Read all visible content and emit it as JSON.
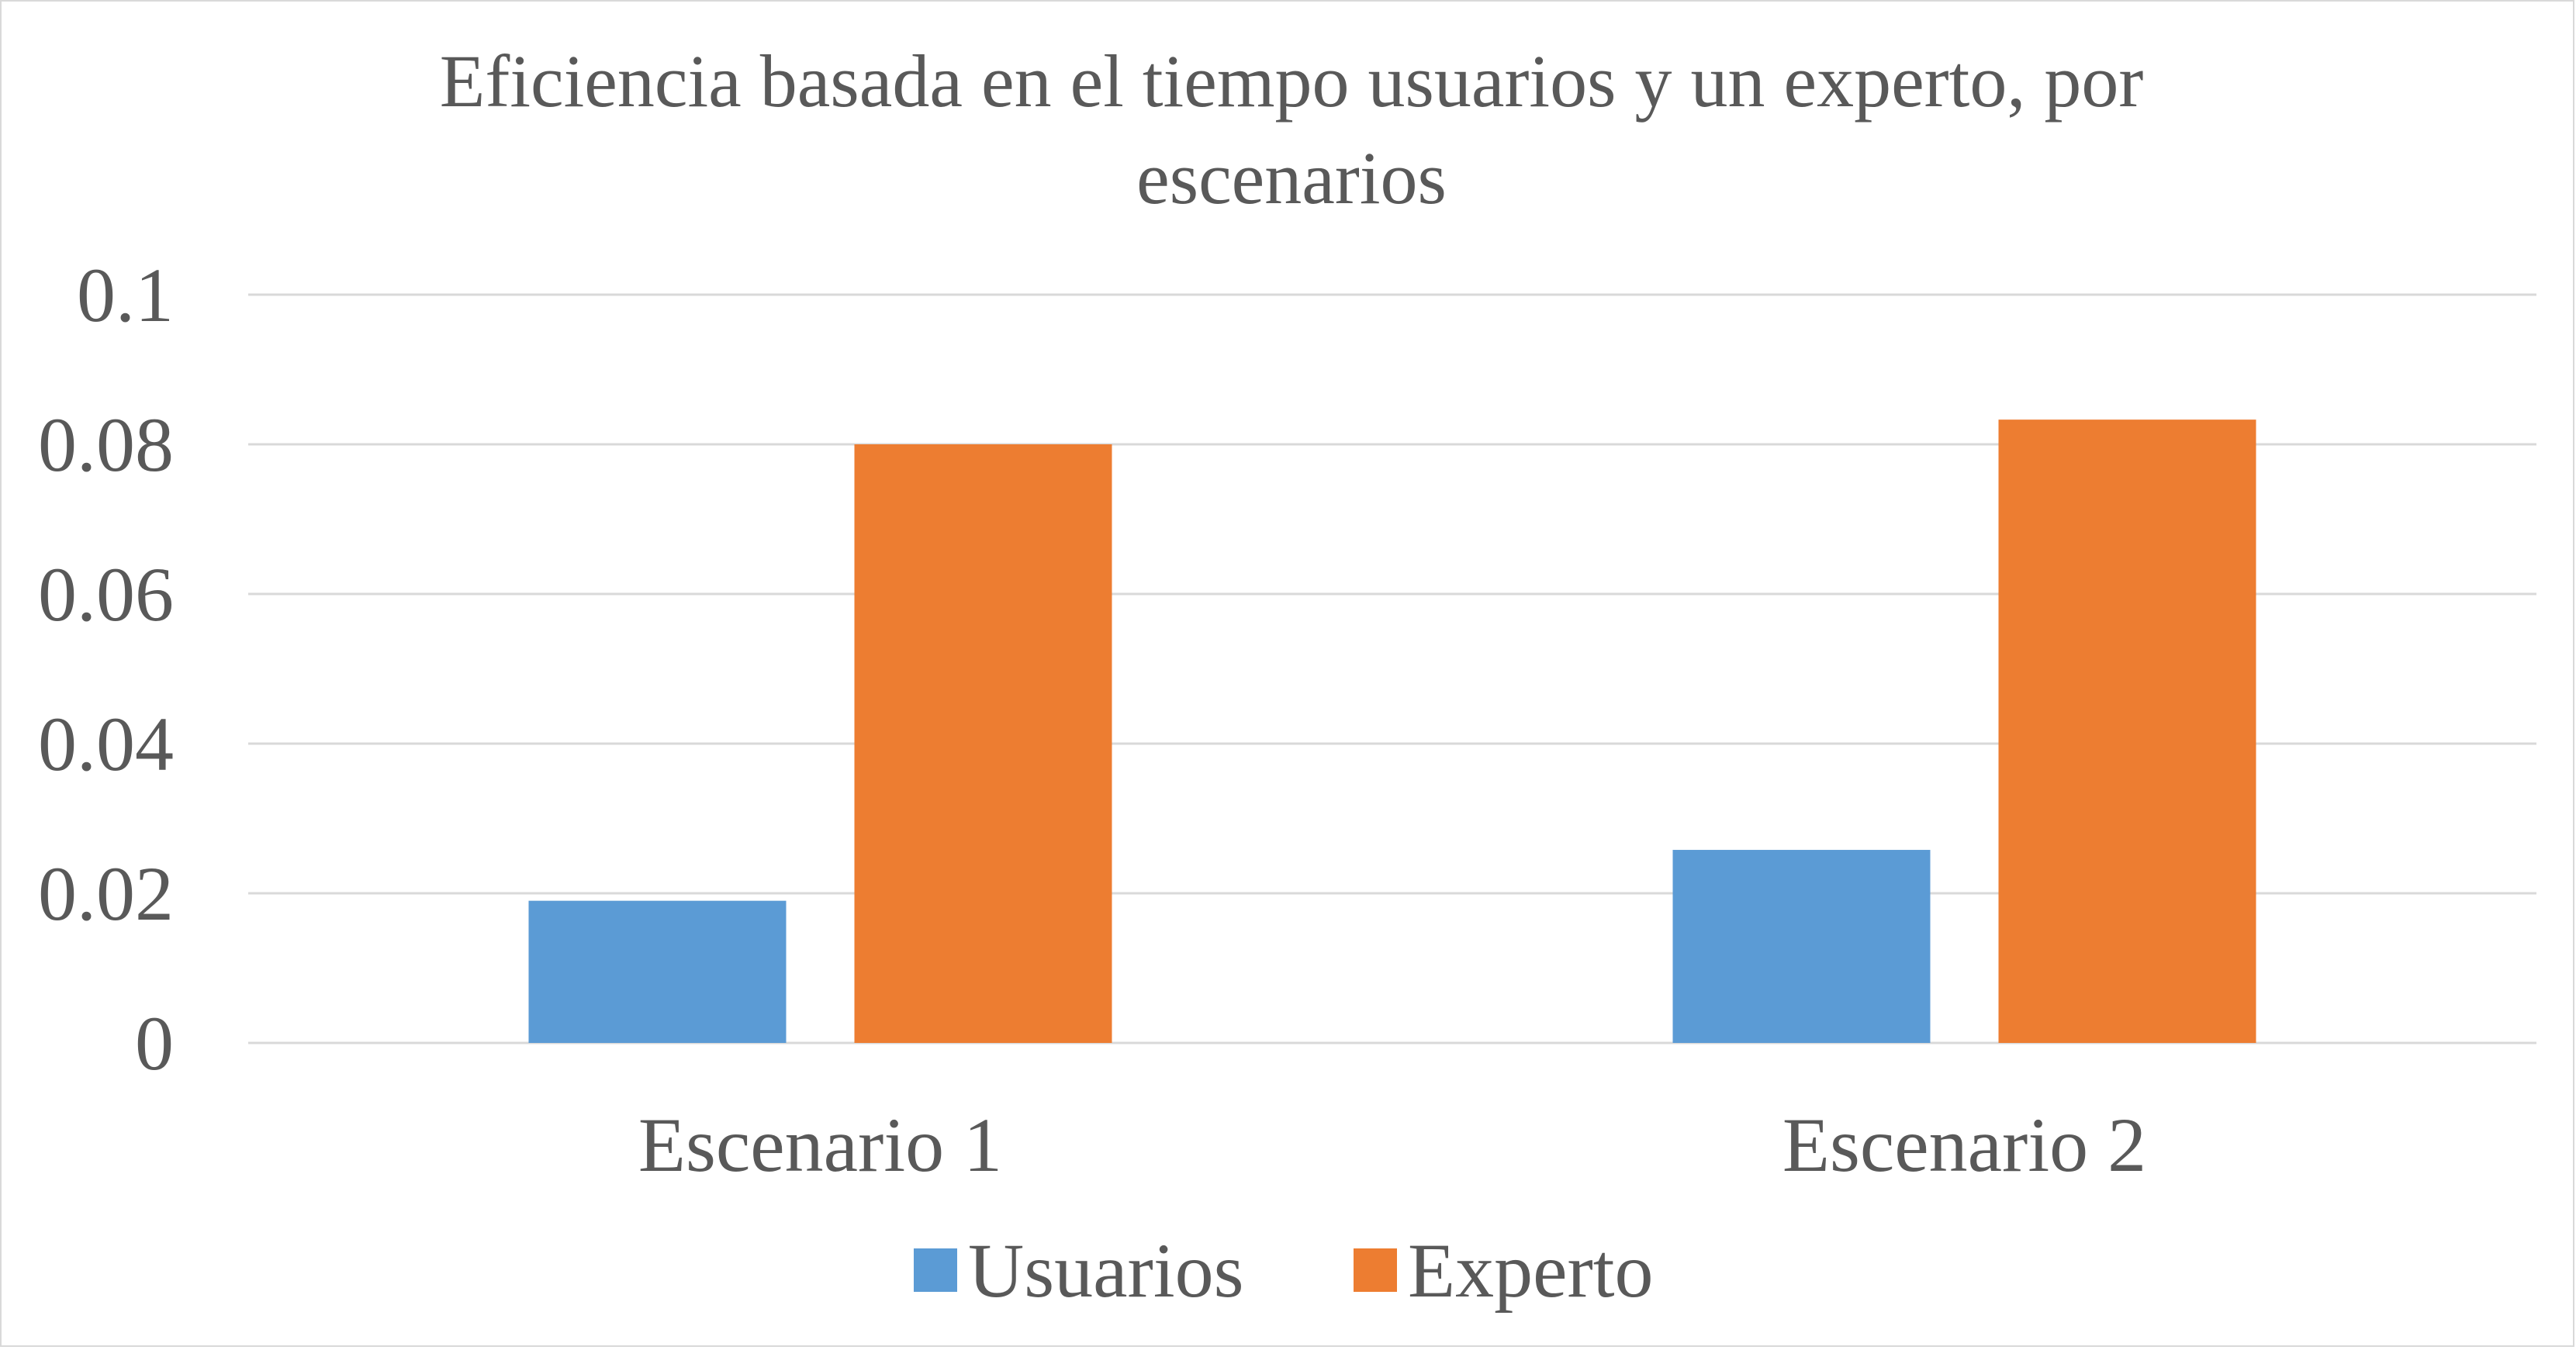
{
  "chart_data": {
    "type": "bar",
    "title_lines": [
      "Eficiencia basada en el tiempo usuarios y un experto, por",
      "escenarios"
    ],
    "categories": [
      "Escenario 1",
      "Escenario 2"
    ],
    "series": [
      {
        "name": "Usuarios",
        "color": "#5b9bd5",
        "values": [
          0.019,
          0.0258
        ]
      },
      {
        "name": "Experto",
        "color": "#ed7d31",
        "values": [
          0.08,
          0.0833
        ]
      }
    ],
    "ylim": [
      0,
      0.1
    ],
    "yticks": [
      {
        "value": 0,
        "label": "0"
      },
      {
        "value": 0.02,
        "label": "0.02"
      },
      {
        "value": 0.04,
        "label": "0.04"
      },
      {
        "value": 0.06,
        "label": "0.06"
      },
      {
        "value": 0.08,
        "label": "0.08"
      },
      {
        "value": 0.1,
        "label": "0.1"
      }
    ],
    "grid": true,
    "legend_position": "bottom",
    "gridline_color": "#d9d9d9",
    "text_color": "#595959"
  }
}
